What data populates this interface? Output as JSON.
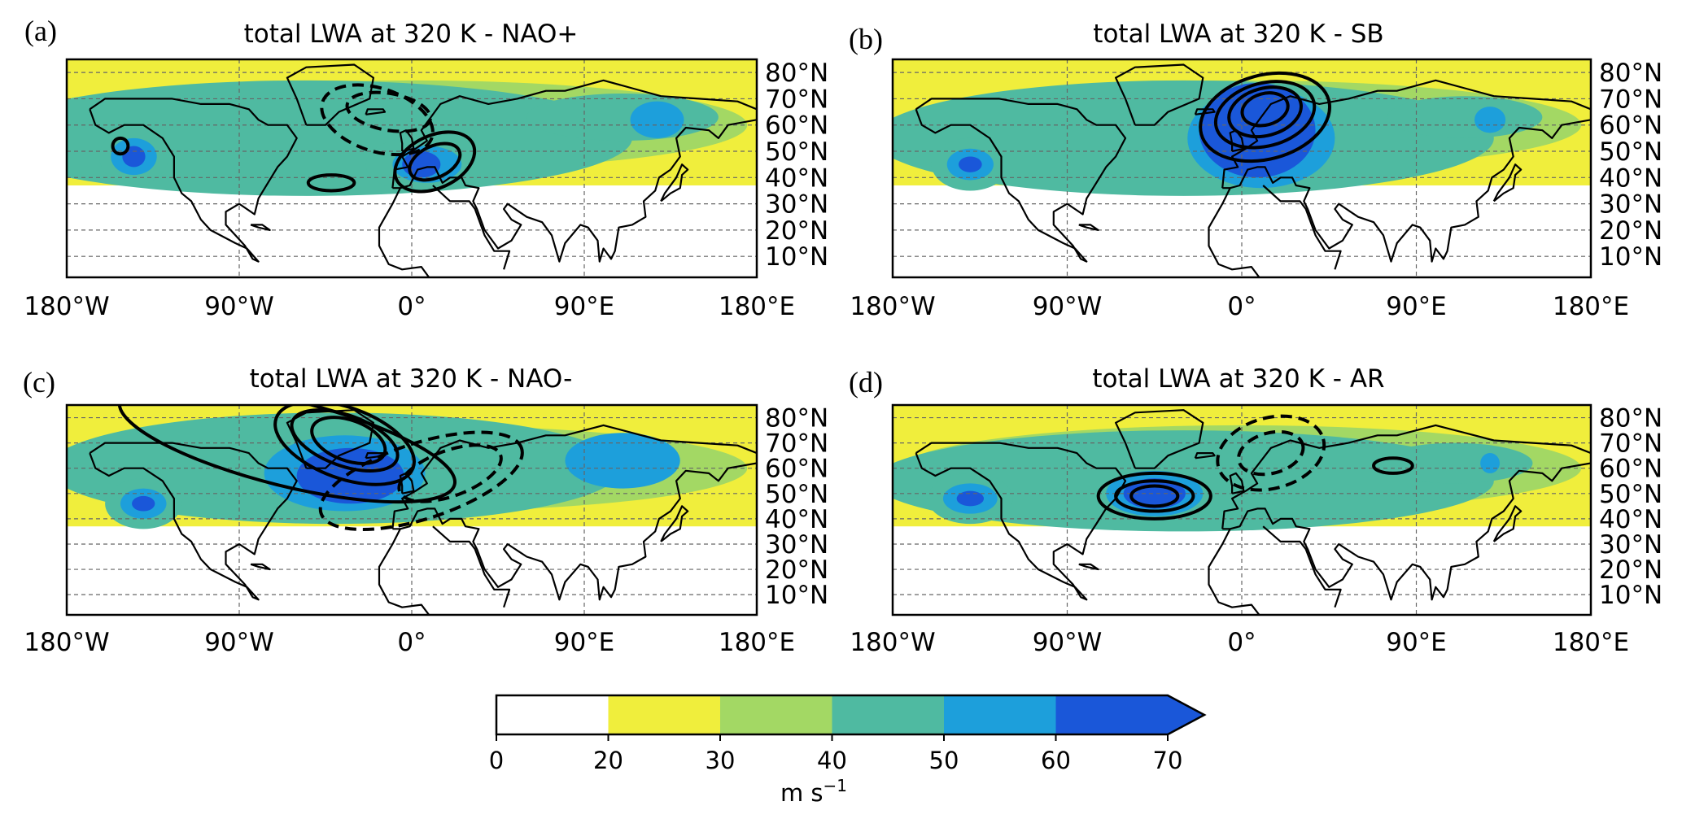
{
  "colors": {
    "levels": [
      "#ffffff",
      "#f0ee3c",
      "#a3d864",
      "#4fbaa1",
      "#1d9fdb",
      "#1a57d9"
    ],
    "frame": "#000000",
    "grid": "#666666"
  },
  "colorbar": {
    "ticks": [
      "0",
      "20",
      "30",
      "40",
      "50",
      "60",
      "70"
    ],
    "unit_base": "m s",
    "unit_exp": "−1",
    "extend": "max"
  },
  "axes": {
    "lon_labels": [
      "180°W",
      "90°W",
      "0°",
      "90°E",
      "180°E"
    ],
    "lat_labels": [
      "80°N",
      "70°N",
      "60°N",
      "50°N",
      "40°N",
      "30°N",
      "20°N",
      "10°N"
    ]
  },
  "panels": [
    {
      "letter": "(a)",
      "title": "total LWA at 320 K - NAO+",
      "blobs": [
        {
          "lon": -55,
          "lat": 55,
          "rx": 170,
          "ry": 22,
          "level": 3
        },
        {
          "lon": 0,
          "lat": 45,
          "rx": 24,
          "ry": 10,
          "level": 3
        },
        {
          "lon": 8,
          "lat": 45,
          "rx": 18,
          "ry": 7,
          "level": 4
        },
        {
          "lon": 5,
          "lat": 45,
          "rx": 10,
          "ry": 5,
          "level": 5
        },
        {
          "lon": 110,
          "lat": 63,
          "rx": 50,
          "ry": 9,
          "level": 3
        },
        {
          "lon": 128,
          "lat": 62,
          "rx": 14,
          "ry": 7,
          "level": 4
        },
        {
          "lon": -145,
          "lat": 48,
          "rx": 18,
          "ry": 11,
          "level": 3
        },
        {
          "lon": -145,
          "lat": 48,
          "rx": 12,
          "ry": 7,
          "level": 4
        },
        {
          "lon": -145,
          "lat": 48,
          "rx": 6,
          "ry": 4,
          "level": 5
        }
      ],
      "contours": [
        {
          "lon": 12,
          "lat": 46,
          "rx": 22,
          "ry": 10,
          "rot": -25,
          "dash": false
        },
        {
          "lon": 12,
          "lat": 46,
          "rx": 14,
          "ry": 6,
          "rot": -25,
          "dash": false
        },
        {
          "lon": -42,
          "lat": 38,
          "rx": 12,
          "ry": 3,
          "rot": 0,
          "dash": false
        },
        {
          "lon": -152,
          "lat": 52,
          "rx": 4,
          "ry": 3,
          "rot": 0,
          "dash": false
        },
        {
          "lon": -18,
          "lat": 62,
          "rx": 30,
          "ry": 12,
          "rot": 18,
          "dash": true
        },
        {
          "lon": -12,
          "lat": 65,
          "rx": 22,
          "ry": 7,
          "rot": 10,
          "dash": true
        }
      ]
    },
    {
      "letter": "(b)",
      "title": "total LWA at 320 K - SB",
      "blobs": [
        {
          "lon": -30,
          "lat": 55,
          "rx": 160,
          "ry": 22,
          "level": 3
        },
        {
          "lon": 10,
          "lat": 55,
          "rx": 38,
          "ry": 19,
          "level": 4
        },
        {
          "lon": 8,
          "lat": 58,
          "rx": 30,
          "ry": 18,
          "level": 5
        },
        {
          "lon": 115,
          "lat": 63,
          "rx": 40,
          "ry": 8,
          "level": 3
        },
        {
          "lon": 128,
          "lat": 62,
          "rx": 8,
          "ry": 5,
          "level": 4
        },
        {
          "lon": -140,
          "lat": 45,
          "rx": 20,
          "ry": 10,
          "level": 3
        },
        {
          "lon": -140,
          "lat": 45,
          "rx": 12,
          "ry": 6,
          "level": 4
        },
        {
          "lon": -140,
          "lat": 45,
          "rx": 6,
          "ry": 3,
          "level": 5
        }
      ],
      "contours": [
        {
          "lon": 12,
          "lat": 63,
          "rx": 34,
          "ry": 16,
          "rot": -15,
          "dash": false
        },
        {
          "lon": 12,
          "lat": 64,
          "rx": 26,
          "ry": 12,
          "rot": -15,
          "dash": false
        },
        {
          "lon": 12,
          "lat": 65,
          "rx": 19,
          "ry": 9,
          "rot": -15,
          "dash": false
        },
        {
          "lon": 12,
          "lat": 66,
          "rx": 12,
          "ry": 6,
          "rot": -15,
          "dash": false
        }
      ]
    },
    {
      "letter": "(c)",
      "title": "total LWA at 320 K - NAO-",
      "blobs": [
        {
          "lon": -40,
          "lat": 60,
          "rx": 150,
          "ry": 22,
          "level": 3
        },
        {
          "lon": -35,
          "lat": 58,
          "rx": 42,
          "ry": 15,
          "level": 4
        },
        {
          "lon": -32,
          "lat": 57,
          "rx": 28,
          "ry": 11,
          "level": 5
        },
        {
          "lon": 110,
          "lat": 63,
          "rx": 30,
          "ry": 11,
          "level": 4
        },
        {
          "lon": -140,
          "lat": 46,
          "rx": 20,
          "ry": 10,
          "level": 3
        },
        {
          "lon": -140,
          "lat": 46,
          "rx": 12,
          "ry": 6,
          "level": 4
        },
        {
          "lon": -140,
          "lat": 46,
          "rx": 6,
          "ry": 3,
          "level": 5
        }
      ],
      "contours": [
        {
          "lon": -35,
          "lat": 70,
          "rx": 38,
          "ry": 14,
          "rot": 20,
          "dash": false
        },
        {
          "lon": -35,
          "lat": 71,
          "rx": 29,
          "ry": 10,
          "rot": 20,
          "dash": false
        },
        {
          "lon": -33,
          "lat": 71,
          "rx": 20,
          "ry": 8,
          "rot": 20,
          "dash": false
        },
        {
          "lon": -65,
          "lat": 70,
          "rx": 90,
          "ry": 17,
          "rot": 14,
          "dash": false
        },
        {
          "lon": 5,
          "lat": 55,
          "rx": 55,
          "ry": 15,
          "rot": -18,
          "dash": true
        },
        {
          "lon": 20,
          "lat": 58,
          "rx": 28,
          "ry": 9,
          "rot": -20,
          "dash": true
        }
      ]
    },
    {
      "letter": "(d)",
      "title": "total LWA at 320 K - AR",
      "blobs": [
        {
          "lon": -30,
          "lat": 55,
          "rx": 160,
          "ry": 20,
          "level": 3
        },
        {
          "lon": -45,
          "lat": 50,
          "rx": 25,
          "ry": 9,
          "level": 4
        },
        {
          "lon": -45,
          "lat": 50,
          "rx": 16,
          "ry": 6,
          "level": 5
        },
        {
          "lon": 110,
          "lat": 62,
          "rx": 40,
          "ry": 8,
          "level": 3
        },
        {
          "lon": 128,
          "lat": 62,
          "rx": 5,
          "ry": 4,
          "level": 4
        },
        {
          "lon": -140,
          "lat": 48,
          "rx": 22,
          "ry": 10,
          "level": 3
        },
        {
          "lon": -140,
          "lat": 48,
          "rx": 14,
          "ry": 6,
          "level": 4
        },
        {
          "lon": -140,
          "lat": 48,
          "rx": 7,
          "ry": 3,
          "level": 5
        }
      ],
      "contours": [
        {
          "lon": -45,
          "lat": 49,
          "rx": 29,
          "ry": 9,
          "rot": 0,
          "dash": false
        },
        {
          "lon": -45,
          "lat": 49,
          "rx": 20,
          "ry": 6,
          "rot": 0,
          "dash": false
        },
        {
          "lon": -45,
          "lat": 49,
          "rx": 12,
          "ry": 4,
          "rot": 0,
          "dash": false
        },
        {
          "lon": 78,
          "lat": 61,
          "rx": 10,
          "ry": 3,
          "rot": 0,
          "dash": false
        },
        {
          "lon": 15,
          "lat": 66,
          "rx": 28,
          "ry": 14,
          "rot": -15,
          "dash": true
        },
        {
          "lon": 15,
          "lat": 66,
          "rx": 17,
          "ry": 8,
          "rot": -15,
          "dash": true
        }
      ]
    }
  ]
}
